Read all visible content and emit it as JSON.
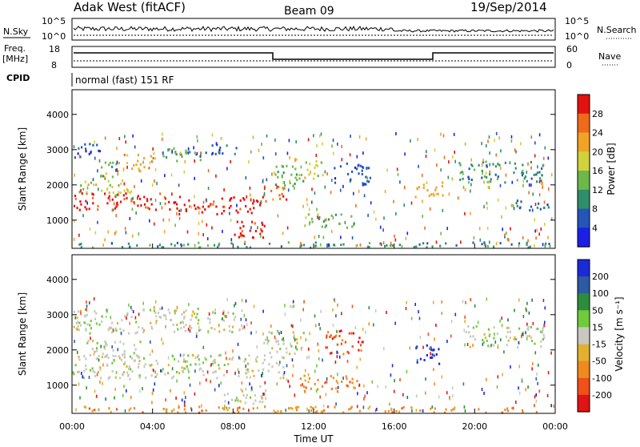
{
  "header": {
    "station": "Adak West (fitACF)",
    "beam": "Beam 09",
    "date": "19/Sep/2014"
  },
  "strips": {
    "nsky_label": "N.Sky",
    "nsearch_label": "N.Search",
    "nsky_ticks": [
      "10^5",
      "10^0"
    ],
    "nsearch_ticks": [
      "10^5",
      "10^0"
    ],
    "freq_label_top": "Freq.",
    "freq_label_unit": "[MHz]",
    "freq_ticks": [
      "18",
      "8"
    ],
    "nave_label": "Nave",
    "nave_ticks": [
      "60",
      "0"
    ],
    "cpid_label": "CPID",
    "cpid_text": "normal (fast) 151 RF"
  },
  "chart_data": [
    {
      "type": "heatmap",
      "name": "power",
      "ylabel": "Slant Range [km]",
      "yticks": [
        1000,
        2000,
        3000,
        4000
      ],
      "ylim": [
        200,
        4700
      ],
      "colorbar": {
        "label": "Power [dB]",
        "ticks": [
          4,
          8,
          12,
          16,
          20,
          24,
          28
        ],
        "colors": [
          "#1c20e6",
          "#2456b8",
          "#2f8f6a",
          "#6db84a",
          "#cfd23a",
          "#f0a326",
          "#f06a1c",
          "#e3120f"
        ]
      }
    },
    {
      "type": "heatmap",
      "name": "velocity",
      "ylabel": "Slant Range [km]",
      "yticks": [
        1000,
        2000,
        3000,
        4000
      ],
      "ylim": [
        200,
        4700
      ],
      "colorbar": {
        "label": "Velocity [m s⁻¹]",
        "ticks": [
          "200",
          "100",
          "50",
          "15",
          "-15",
          "-50",
          "-100",
          "-200"
        ],
        "colors": [
          "#1c2ad6",
          "#2d5aa0",
          "#2c8e3c",
          "#6fca3c",
          "#c8c8c0",
          "#e2b030",
          "#f08a20",
          "#f0501a",
          "#e01414"
        ]
      }
    }
  ],
  "xaxis": {
    "ticks": [
      "00:00",
      "04:00",
      "08:00",
      "12:00",
      "16:00",
      "20:00",
      "00:00"
    ],
    "label": "Time UT"
  },
  "bands": {
    "power": [
      {
        "t0": 0.0,
        "t1": 4.5,
        "r0": 1300,
        "r1": 1800,
        "c": 7
      },
      {
        "t0": 4.5,
        "t1": 9.5,
        "r0": 1200,
        "r1": 1700,
        "c": 7
      },
      {
        "t0": 9.5,
        "t1": 10.7,
        "r0": 1500,
        "r1": 2000,
        "c": 6
      },
      {
        "t0": 0.3,
        "t1": 3.2,
        "r0": 1800,
        "r1": 2200,
        "c": 4
      },
      {
        "t0": 0.0,
        "t1": 1.5,
        "r0": 2800,
        "r1": 3200,
        "c": 1
      },
      {
        "t0": 1.2,
        "t1": 2.2,
        "r0": 2200,
        "r1": 2700,
        "c": 3
      },
      {
        "t0": 2.2,
        "t1": 4.0,
        "r0": 2400,
        "r1": 2900,
        "c": 5
      },
      {
        "t0": 4.0,
        "t1": 6.5,
        "r0": 2700,
        "r1": 3100,
        "c": 3
      },
      {
        "t0": 6.5,
        "t1": 8.3,
        "r0": 2900,
        "r1": 3200,
        "c": 1
      },
      {
        "t0": 7.6,
        "t1": 9.6,
        "r0": 500,
        "r1": 1000,
        "c": 7
      },
      {
        "t0": 10.0,
        "t1": 11.5,
        "r0": 2000,
        "r1": 2600,
        "c": 3
      },
      {
        "t0": 11.0,
        "t1": 12.5,
        "r0": 2200,
        "r1": 2800,
        "c": 4
      },
      {
        "t0": 11.5,
        "t1": 14.0,
        "r0": 800,
        "r1": 1200,
        "c": 3
      },
      {
        "t0": 13.0,
        "t1": 14.8,
        "r0": 2000,
        "r1": 2700,
        "c": 1
      },
      {
        "t0": 17.0,
        "t1": 18.5,
        "r0": 1600,
        "r1": 2100,
        "c": 5
      },
      {
        "t0": 19.2,
        "t1": 23.5,
        "r0": 2100,
        "r1": 2700,
        "c": 2
      },
      {
        "t0": 22.0,
        "t1": 24.0,
        "r0": 1300,
        "r1": 1600,
        "c": 1
      },
      {
        "t0": 0.0,
        "t1": 24.0,
        "r0": 250,
        "r1": 400,
        "c": 2
      }
    ],
    "velocity": [
      {
        "t0": 0.0,
        "t1": 10.5,
        "r0": 1200,
        "r1": 1900,
        "c": 4
      },
      {
        "t0": 0.5,
        "t1": 3.5,
        "r0": 1800,
        "r1": 2300,
        "c": 4
      },
      {
        "t0": 0.0,
        "t1": 8.5,
        "r0": 2500,
        "r1": 3200,
        "c": 4
      },
      {
        "t0": 7.5,
        "t1": 9.7,
        "r0": 500,
        "r1": 1000,
        "c": 4
      },
      {
        "t0": 9.5,
        "t1": 11.5,
        "r0": 1900,
        "r1": 2600,
        "c": 4
      },
      {
        "t0": 11.3,
        "t1": 14.3,
        "r0": 800,
        "r1": 1300,
        "c": 6
      },
      {
        "t0": 12.5,
        "t1": 14.5,
        "r0": 1900,
        "r1": 2600,
        "c": 7
      },
      {
        "t0": 17.0,
        "t1": 18.3,
        "r0": 1600,
        "r1": 2200,
        "c": 0
      },
      {
        "t0": 19.5,
        "t1": 23.5,
        "r0": 2100,
        "r1": 2700,
        "c": 4
      },
      {
        "t0": 0.0,
        "t1": 24.0,
        "r0": 250,
        "r1": 420,
        "c": 6
      }
    ]
  }
}
